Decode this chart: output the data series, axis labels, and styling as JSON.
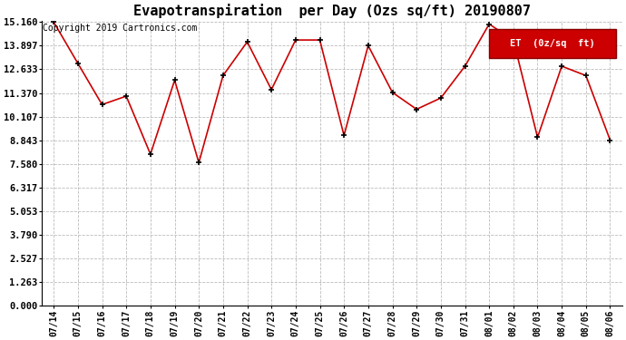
{
  "title": "Evapotranspiration  per Day (Ozs sq/ft) 20190807",
  "copyright": "Copyright 2019 Cartronics.com",
  "legend_label": "ET  (0z/sq  ft)",
  "x_labels": [
    "07/14",
    "07/15",
    "07/16",
    "07/17",
    "07/18",
    "07/19",
    "07/20",
    "07/21",
    "07/22",
    "07/23",
    "07/24",
    "07/25",
    "07/26",
    "07/27",
    "07/28",
    "07/29",
    "07/30",
    "07/31",
    "08/01",
    "08/02",
    "08/03",
    "08/04",
    "08/05",
    "08/06"
  ],
  "y_values": [
    15.16,
    12.95,
    10.75,
    11.2,
    8.1,
    12.05,
    7.65,
    12.3,
    14.1,
    11.55,
    14.2,
    14.2,
    9.1,
    13.9,
    11.4,
    10.5,
    11.1,
    12.8,
    15.05,
    14.2,
    9.0,
    12.8,
    12.3,
    8.85
  ],
  "y_ticks": [
    0.0,
    1.263,
    2.527,
    3.79,
    5.053,
    6.317,
    7.58,
    8.843,
    10.107,
    11.37,
    12.633,
    13.897,
    15.16
  ],
  "ylim_min": 0.0,
  "ylim_max": 15.16,
  "line_color": "#cc0000",
  "marker_color": "black",
  "grid_color": "#bbbbbb",
  "bg_color": "#ffffff",
  "legend_bg": "#cc0000",
  "legend_text_color": "#ffffff",
  "title_fontsize": 11,
  "copyright_fontsize": 7,
  "tick_fontsize": 7,
  "ytick_fontsize": 7.5,
  "legend_fontsize": 7.5
}
